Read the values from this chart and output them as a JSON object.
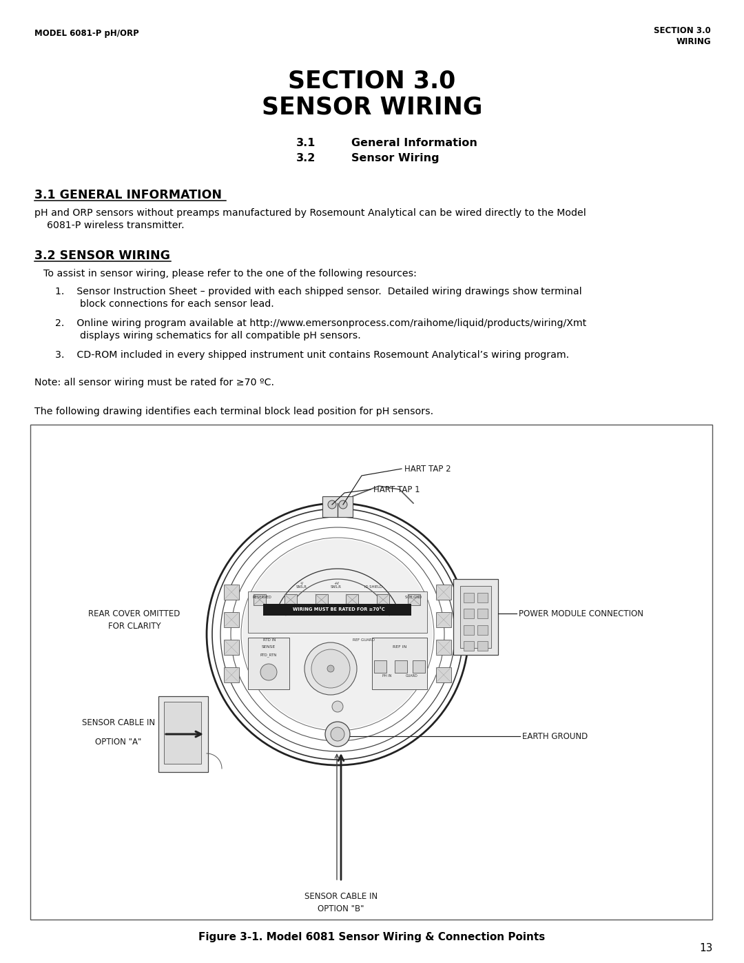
{
  "header_left": "MODEL 6081-P pH/ORP",
  "header_right_line1": "SECTION 3.0",
  "header_right_line2": "WIRING",
  "main_title_line1": "SECTION 3.0",
  "main_title_line2": "SENSOR WIRING",
  "toc_31": "3.1     General Information",
  "toc_32": "3.2     Sensor Wiring",
  "section31_heading": "3.1 GENERAL INFORMATION",
  "section31_body_l1": "pH and ORP sensors without preamps manufactured by Rosemount Analytical can be wired directly to the Model",
  "section31_body_l2": "    6081-P wireless transmitter.",
  "section32_heading": "3.2 SENSOR WIRING",
  "section32_intro": "To assist in sensor wiring, please refer to the one of the following resources:",
  "item1_l1": "1.    Sensor Instruction Sheet – provided with each shipped sensor.  Detailed wiring drawings show terminal",
  "item1_l2": "        block connections for each sensor lead.",
  "item2_l1": "2.    Online wiring program available at http://www.emersonprocess.com/raihome/liquid/products/wiring/Xmt",
  "item2_l2": "        displays wiring schematics for all compatible pH sensors.",
  "item3": "3.    CD-ROM included in every shipped instrument unit contains Rosemount Analytical’s wiring program.",
  "note_text": "Note: all sensor wiring must be rated for ≥70 ºC.",
  "diagram_intro": "The following drawing identifies each terminal block lead position for pH sensors.",
  "figure_caption": "Figure 3-1. Model 6081 Sensor Wiring & Connection Points",
  "page_number": "13",
  "bg_color": "#ffffff",
  "text_color": "#000000",
  "label_hart2": "HART TAP 2",
  "label_hart1": "HART TAP 1",
  "label_rear": "REAR COVER OMITTED\nFOR CLARITY",
  "label_power": "POWER MODULE CONNECTION",
  "label_sensor_a_l1": "SENSOR CABLE IN",
  "label_sensor_a_l2": "OPTION \"A\"",
  "label_sensor_b_l1": "SENSOR CABLE IN",
  "label_sensor_b_l2": "OPTION \"B\"",
  "label_earth": "EARTH GROUND"
}
